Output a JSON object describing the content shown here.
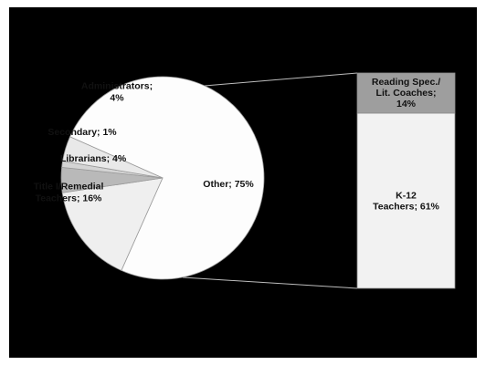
{
  "chart_data": {
    "type": "bar-of-pie",
    "pie": {
      "slices": [
        {
          "label": "Other; 75%",
          "category": "Other",
          "value": 75,
          "color": "#fdfdfd"
        },
        {
          "label": "Title I/Remedial\nTeachers; 16%",
          "category": "Title I/Remedial Teachers",
          "value": 16,
          "color": "#efefef"
        },
        {
          "label": "Librarians; 4%",
          "category": "Librarians",
          "value": 4,
          "color": "#b9b9b9"
        },
        {
          "label": "Secondary; 1%",
          "category": "Secondary",
          "value": 1,
          "color": "#d4d4d4"
        },
        {
          "label": "Administrators;\n4%",
          "category": "Administrators",
          "value": 4,
          "color": "#e9e9e9"
        }
      ]
    },
    "bar": {
      "segments": [
        {
          "label": "Reading Spec./\nLit. Coaches;\n14%",
          "category": "Reading Spec./Lit. Coaches",
          "value": 14,
          "color": "#9e9e9e"
        },
        {
          "label": "K-12\nTeachers; 61%",
          "category": "K-12 Teachers",
          "value": 61,
          "color": "#f2f2f2"
        }
      ]
    },
    "legend": "none",
    "grid": false
  }
}
